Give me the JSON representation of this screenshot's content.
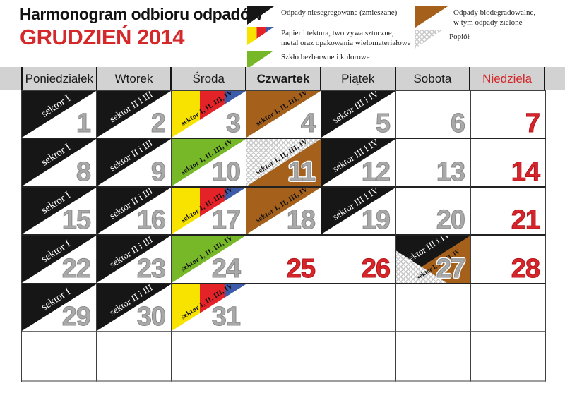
{
  "header": {
    "title": "Harmonogram odbioru odpadów",
    "month": "GRUDZIEŃ 2014"
  },
  "legend": {
    "items": [
      {
        "type": "mixed",
        "icon": "mixed-waste-icon",
        "label": "Odpady niesegregowane (zmieszane)"
      },
      {
        "type": "paper",
        "icon": "paper-waste-icon",
        "label": "Papier i tektura, tworzywa sztuczne,\nmetal oraz opakowania wielomateriałowe"
      },
      {
        "type": "glass",
        "icon": "glass-waste-icon",
        "label": "Szkło bezbarwne i kolorowe"
      },
      {
        "type": "bio",
        "icon": "bio-waste-icon",
        "label": "Odpady biodegradowalne,\nw tym odpady zielone"
      },
      {
        "type": "ash",
        "icon": "ash-waste-icon",
        "label": "Popiół"
      }
    ]
  },
  "weekdays": [
    {
      "label": "Poniedziałek"
    },
    {
      "label": "Wtorek"
    },
    {
      "label": "Środa"
    },
    {
      "label": "Czwartek",
      "emphasis": true
    },
    {
      "label": "Piątek"
    },
    {
      "label": "Sobota"
    },
    {
      "label": "Niedziela",
      "holiday": true
    }
  ],
  "calendar": {
    "cells": [
      {
        "day": "1",
        "sector": "sektor I",
        "waste": [
          "mixed"
        ]
      },
      {
        "day": "2",
        "sector": "sektor II i III",
        "waste": [
          "mixed"
        ]
      },
      {
        "day": "3",
        "sector": "sektor I, II, III, IV",
        "waste": [
          "paper"
        ]
      },
      {
        "day": "4",
        "sector": "sektor I, II, III, IV",
        "waste": [
          "bio"
        ]
      },
      {
        "day": "5",
        "sector": "sektor III i IV",
        "waste": [
          "mixed"
        ]
      },
      {
        "day": "6",
        "waste": []
      },
      {
        "day": "7",
        "holiday": true,
        "waste": []
      },
      {
        "day": "8",
        "sector": "sektor I",
        "waste": [
          "mixed"
        ]
      },
      {
        "day": "9",
        "sector": "sektor II i III",
        "waste": [
          "mixed"
        ]
      },
      {
        "day": "10",
        "sector": "sektor I, II, III, IV",
        "waste": [
          "glass"
        ]
      },
      {
        "day": "11",
        "sector": "sektor I, II, III, IV",
        "waste": [
          "ash",
          "bio"
        ]
      },
      {
        "day": "12",
        "sector": "sektor III i IV",
        "waste": [
          "mixed"
        ]
      },
      {
        "day": "13",
        "waste": []
      },
      {
        "day": "14",
        "holiday": true,
        "waste": []
      },
      {
        "day": "15",
        "sector": "sektor I",
        "waste": [
          "mixed"
        ]
      },
      {
        "day": "16",
        "sector": "sektor II i III",
        "waste": [
          "mixed"
        ]
      },
      {
        "day": "17",
        "sector": "sektor I, II, III, IV",
        "waste": [
          "paper"
        ]
      },
      {
        "day": "18",
        "sector": "sektor I, II, III, IV",
        "waste": [
          "bio"
        ]
      },
      {
        "day": "19",
        "sector": "sektor III i IV",
        "waste": [
          "mixed"
        ]
      },
      {
        "day": "20",
        "waste": []
      },
      {
        "day": "21",
        "holiday": true,
        "waste": []
      },
      {
        "day": "22",
        "sector": "sektor I",
        "waste": [
          "mixed"
        ]
      },
      {
        "day": "23",
        "sector": "sektor II i III",
        "waste": [
          "mixed"
        ]
      },
      {
        "day": "24",
        "sector": "sektor I, II, III, IV",
        "waste": [
          "glass"
        ]
      },
      {
        "day": "25",
        "holiday": true,
        "waste": []
      },
      {
        "day": "26",
        "holiday": true,
        "waste": []
      },
      {
        "day": "27",
        "sector": "sektor III i IV",
        "sector2": "sektor I, II, III, IV",
        "waste": [
          "mixed",
          "bio",
          "ash"
        ]
      },
      {
        "day": "28",
        "holiday": true,
        "waste": []
      },
      {
        "day": "29",
        "sector": "sektor I",
        "waste": [
          "mixed"
        ]
      },
      {
        "day": "30",
        "sector": "sektor II i III",
        "waste": [
          "mixed"
        ]
      },
      {
        "day": "31",
        "sector": "sektor I, II, III, IV",
        "waste": [
          "paper"
        ]
      },
      {},
      {},
      {},
      {},
      {},
      {},
      {},
      {},
      {},
      {},
      {}
    ]
  },
  "colors": {
    "accent_red": "#d4282a",
    "mixed_black": "#161616",
    "paper_yellow": "#f8e300",
    "paper_red": "#e42328",
    "paper_blue": "#3c5ba8",
    "glass_green": "#77b829",
    "bio_brown": "#a5611c",
    "ash_gray": "#c9c9c9",
    "day_number_gray": "#a9a9a9",
    "header_band_gray": "#d2d2d2"
  }
}
